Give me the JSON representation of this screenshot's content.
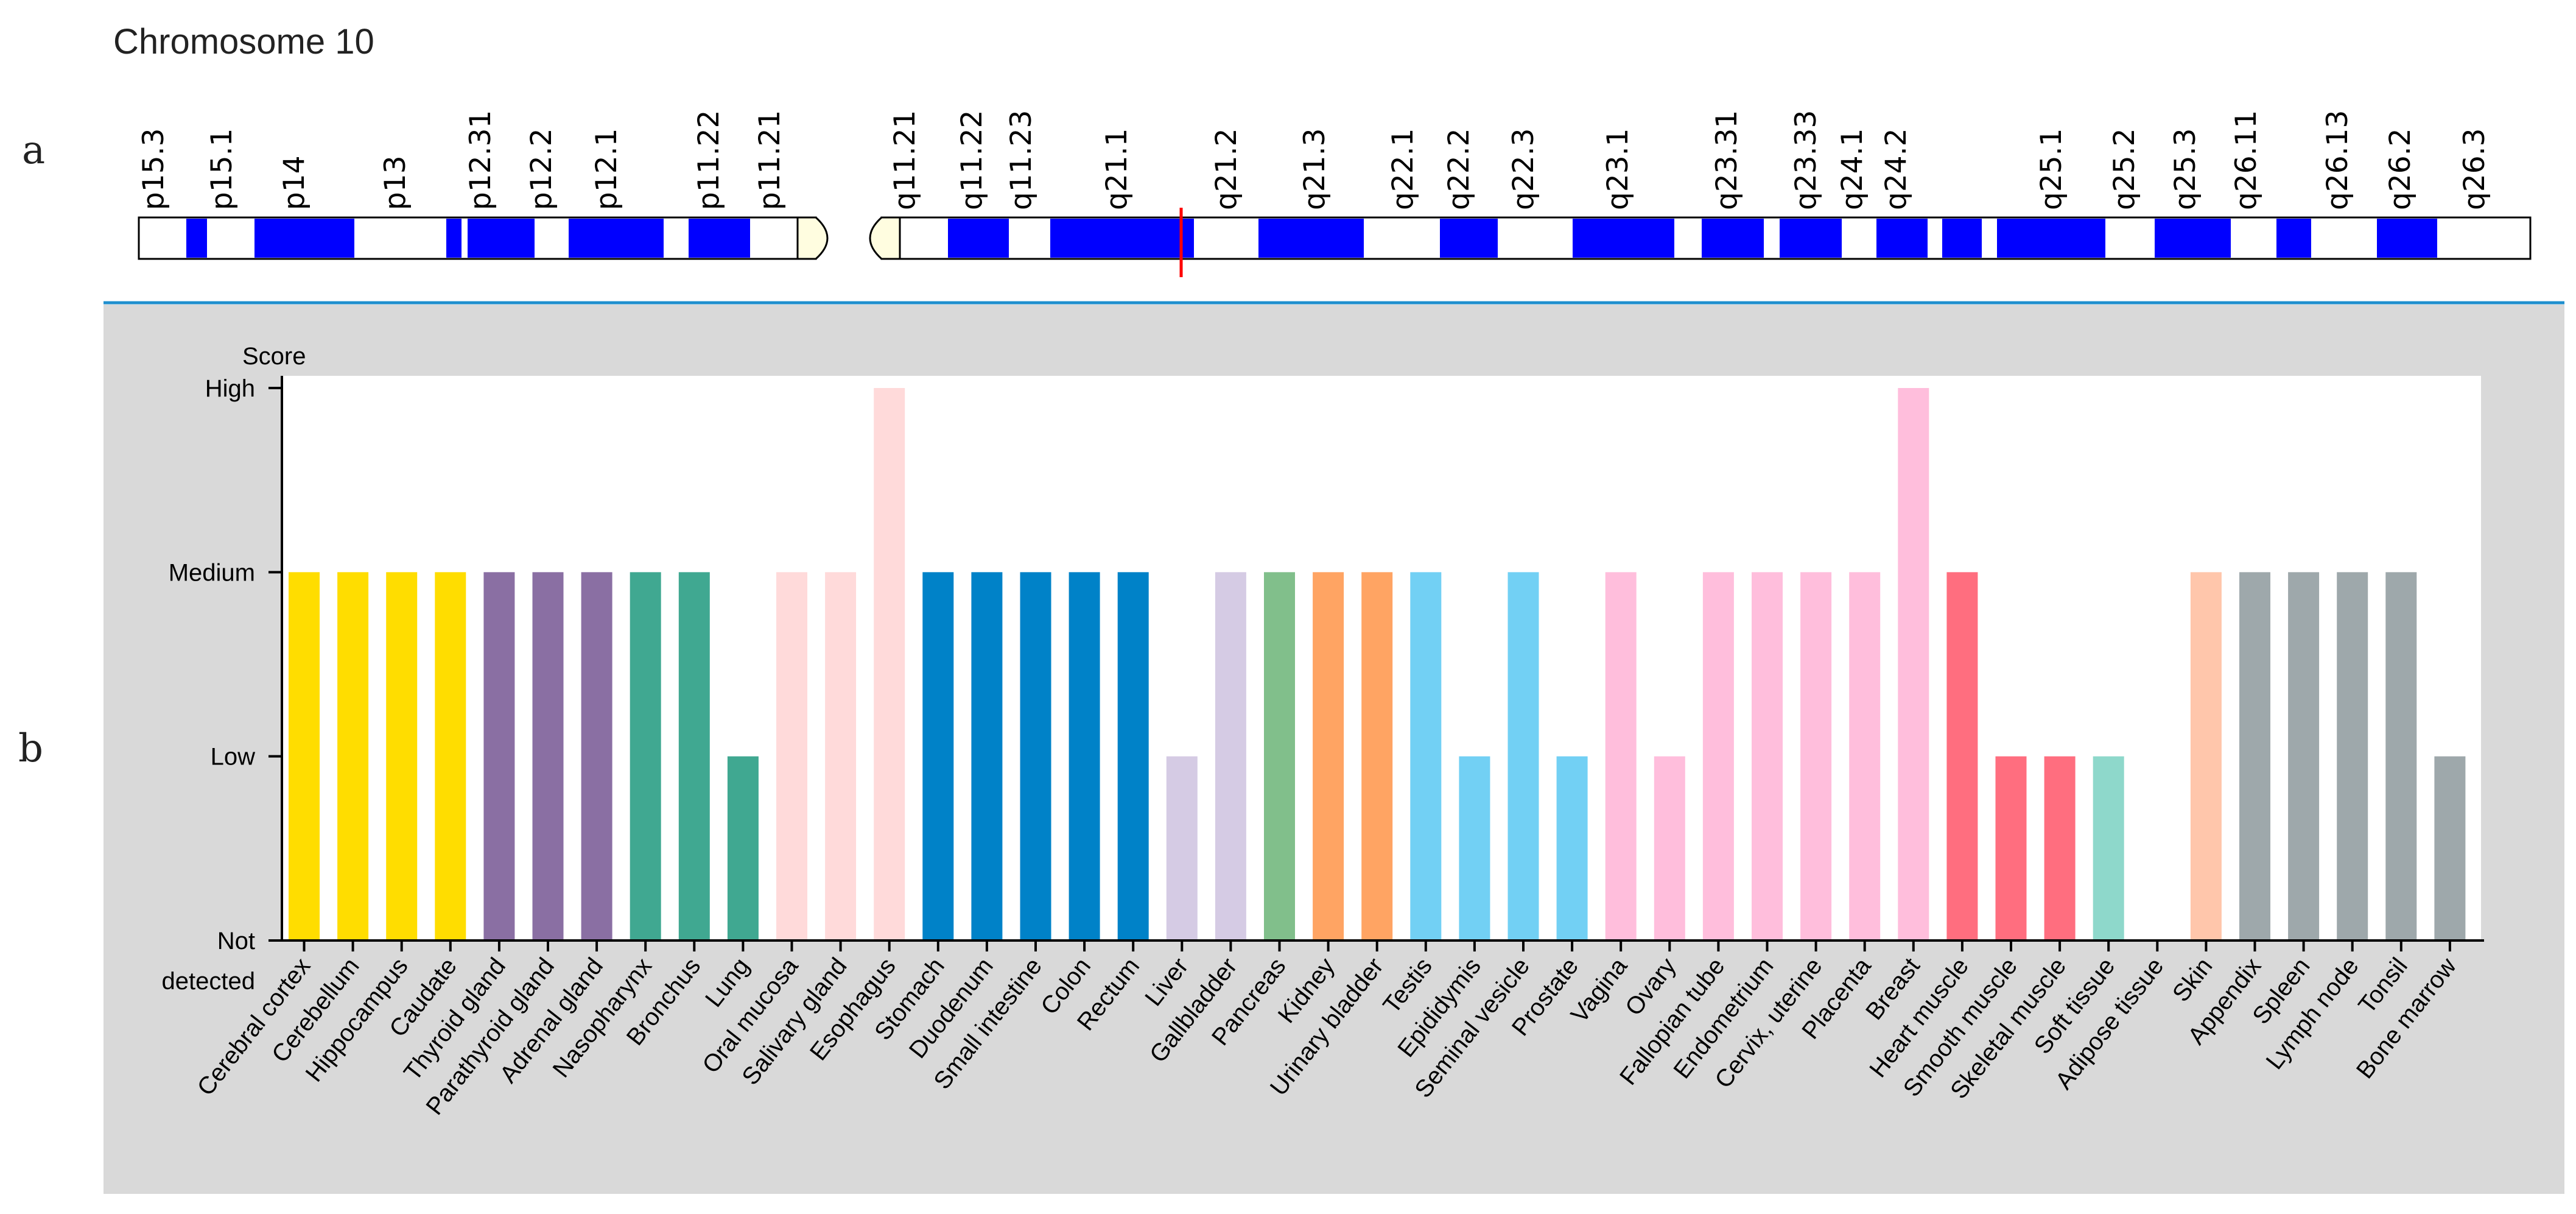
{
  "panel_labels": {
    "a": "a",
    "b": "b"
  },
  "ideogram": {
    "title": "Chromosome 10",
    "band_labels": [
      "p15.3",
      "p15.1",
      "p14",
      "p13",
      "p12.31",
      "p12.2",
      "p12.1",
      "p11.22",
      "p11.21",
      "q11.21",
      "q11.22",
      "q11.23",
      "q21.1",
      "q21.2",
      "q21.3",
      "q22.1",
      "q22.2",
      "q22.3",
      "q23.1",
      "q23.31",
      "q23.33",
      "q24.1",
      "q24.2",
      "q25.1",
      "q25.2",
      "q25.3",
      "q26.11",
      "q26.13",
      "q26.2",
      "q26.3"
    ],
    "band_color": "#0000ff",
    "centromere_color": "#fffde0",
    "marker_color": "#ff0000",
    "divider_color": "#1f8fce"
  },
  "chart_data": {
    "type": "bar",
    "title": "",
    "ylabel": "Score",
    "xlabel": "",
    "y_levels": [
      "Not detected",
      "Low",
      "Medium",
      "High"
    ],
    "y_tick_lines": [
      [
        "Not",
        "detected"
      ],
      [
        "Low"
      ],
      [
        "Medium"
      ],
      [
        "High"
      ]
    ],
    "ylim": [
      0,
      3
    ],
    "background_color": "#d9d9d9",
    "plot_color": "#ffffff",
    "categories": [
      "Cerebral cortex",
      "Cerebellum",
      "Hippocampus",
      "Caudate",
      "Thyroid gland",
      "Parathyroid gland",
      "Adrenal gland",
      "Nasopharynx",
      "Bronchus",
      "Lung",
      "Oral mucosa",
      "Salivary gland",
      "Esophagus",
      "Stomach",
      "Duodenum",
      "Small intestine",
      "Colon",
      "Rectum",
      "Liver",
      "Gallbladder",
      "Pancreas",
      "Kidney",
      "Urinary bladder",
      "Testis",
      "Epididymis",
      "Seminal vesicle",
      "Prostate",
      "Vagina",
      "Ovary",
      "Fallopian tube",
      "Endometrium",
      "Cervix, uterine",
      "Placenta",
      "Breast",
      "Heart muscle",
      "Smooth muscle",
      "Skeletal muscle",
      "Soft tissue",
      "Adipose tissue",
      "Skin",
      "Appendix",
      "Spleen",
      "Lymph node",
      "Tonsil",
      "Bone marrow"
    ],
    "values": [
      2,
      2,
      2,
      2,
      2,
      2,
      2,
      2,
      2,
      1,
      2,
      2,
      3,
      2,
      2,
      2,
      2,
      2,
      1,
      2,
      2,
      2,
      2,
      2,
      1,
      2,
      1,
      2,
      1,
      2,
      2,
      2,
      2,
      3,
      2,
      1,
      1,
      1,
      0,
      2,
      2,
      2,
      2,
      2,
      1
    ],
    "colors": [
      "#ffdd00",
      "#ffdd00",
      "#ffdd00",
      "#ffdd00",
      "#8a6fa3",
      "#8a6fa3",
      "#8a6fa3",
      "#40a891",
      "#40a891",
      "#40a891",
      "#ffdada",
      "#ffdada",
      "#ffdada",
      "#0082c8",
      "#0082c8",
      "#0082c8",
      "#0082c8",
      "#0082c8",
      "#d5cbe4",
      "#d5cbe4",
      "#81bf8b",
      "#ffa463",
      "#ffa463",
      "#72d0f4",
      "#72d0f4",
      "#72d0f4",
      "#72d0f4",
      "#ffbedc",
      "#ffbedc",
      "#ffbedc",
      "#ffbedc",
      "#ffbedc",
      "#ffbedc",
      "#ffbedc",
      "#ff6e7f",
      "#ff6e7f",
      "#ff6e7f",
      "#8ed8cb",
      "#ffe6a0",
      "#ffc6ab",
      "#9ea8ab",
      "#9ea8ab",
      "#9ea8ab",
      "#9ea8ab",
      "#9ea8ab"
    ]
  }
}
